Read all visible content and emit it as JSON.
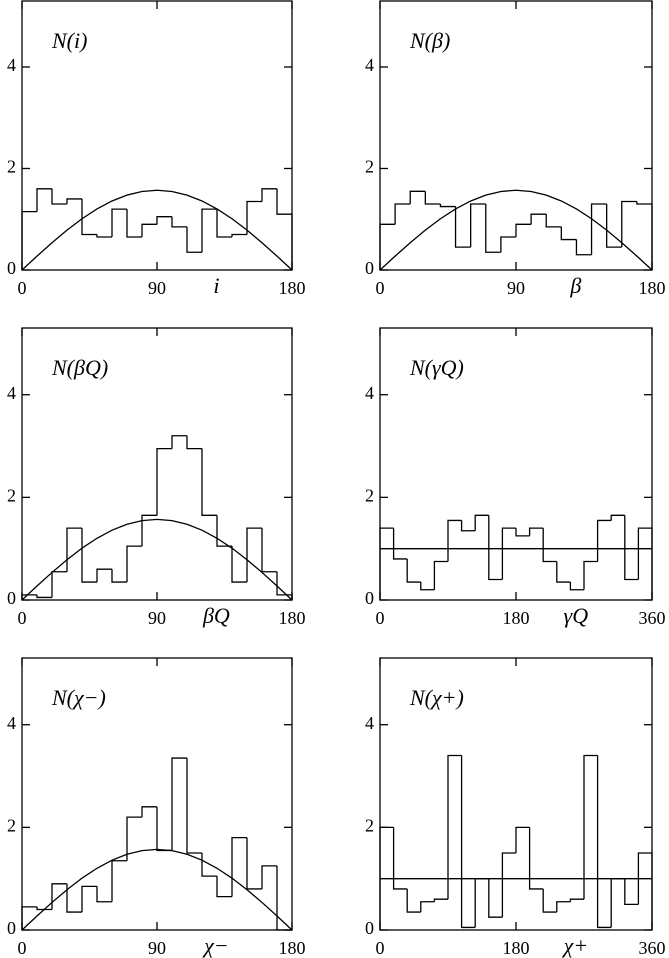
{
  "chart_data": [
    {
      "type": "histogram",
      "title": "N(i)",
      "xlabel": "i",
      "bins": [
        0,
        10,
        20,
        30,
        40,
        50,
        60,
        70,
        80,
        90,
        100,
        110,
        120,
        130,
        140,
        150,
        160,
        170,
        180
      ],
      "values": [
        1.15,
        1.6,
        1.3,
        1.4,
        0.7,
        0.65,
        1.2,
        0.65,
        0.9,
        1.05,
        0.85,
        0.35,
        1.2,
        0.65,
        0.7,
        1.35,
        1.6,
        1.1
      ],
      "curve": {
        "x": [
          0,
          10,
          20,
          30,
          40,
          50,
          60,
          70,
          80,
          90,
          100,
          110,
          120,
          130,
          140,
          150,
          160,
          170,
          180
        ],
        "values": [
          0,
          0.273,
          0.537,
          0.785,
          1.01,
          1.203,
          1.36,
          1.476,
          1.547,
          1.571,
          1.547,
          1.476,
          1.36,
          1.203,
          1.01,
          0.785,
          0.537,
          0.273,
          0
        ]
      },
      "xlim": [
        0,
        180
      ],
      "xticks": [
        0,
        90,
        180
      ],
      "ylim": [
        0,
        5.3
      ],
      "yticks": [
        0,
        2,
        4
      ],
      "color": "#000000"
    },
    {
      "type": "histogram",
      "title": "N(β)",
      "xlabel": "β",
      "bins": [
        0,
        10,
        20,
        30,
        40,
        50,
        60,
        70,
        80,
        90,
        100,
        110,
        120,
        130,
        140,
        150,
        160,
        170,
        180
      ],
      "values": [
        0.9,
        1.3,
        1.55,
        1.3,
        1.25,
        0.45,
        1.3,
        0.35,
        0.65,
        0.9,
        1.1,
        0.85,
        0.6,
        0.3,
        1.3,
        0.45,
        1.35,
        1.3
      ],
      "curve": {
        "x": [
          0,
          10,
          20,
          30,
          40,
          50,
          60,
          70,
          80,
          90,
          100,
          110,
          120,
          130,
          140,
          150,
          160,
          170,
          180
        ],
        "values": [
          0,
          0.273,
          0.537,
          0.785,
          1.01,
          1.203,
          1.36,
          1.476,
          1.547,
          1.571,
          1.547,
          1.476,
          1.36,
          1.203,
          1.01,
          0.785,
          0.537,
          0.273,
          0
        ]
      },
      "xlim": [
        0,
        180
      ],
      "xticks": [
        0,
        90,
        180
      ],
      "ylim": [
        0,
        5.3
      ],
      "yticks": [
        0,
        2,
        4
      ],
      "color": "#000000"
    },
    {
      "type": "histogram",
      "title": "N(βQ)",
      "xlabel": "βQ",
      "bins": [
        0,
        10,
        20,
        30,
        40,
        50,
        60,
        70,
        80,
        90,
        100,
        110,
        120,
        130,
        140,
        150,
        160,
        170,
        180
      ],
      "values": [
        0.1,
        0.05,
        0.55,
        1.4,
        0.35,
        0.6,
        0.35,
        1.05,
        1.65,
        2.95,
        3.2,
        2.95,
        1.65,
        1.05,
        0.35,
        1.4,
        0.55,
        0.1
      ],
      "curve": {
        "x": [
          0,
          10,
          20,
          30,
          40,
          50,
          60,
          70,
          80,
          90,
          100,
          110,
          120,
          130,
          140,
          150,
          160,
          170,
          180
        ],
        "values": [
          0,
          0.273,
          0.537,
          0.785,
          1.01,
          1.203,
          1.36,
          1.476,
          1.547,
          1.571,
          1.547,
          1.476,
          1.36,
          1.203,
          1.01,
          0.785,
          0.537,
          0.273,
          0
        ]
      },
      "xlim": [
        0,
        180
      ],
      "xticks": [
        0,
        90,
        180
      ],
      "ylim": [
        0,
        5.3
      ],
      "yticks": [
        0,
        2,
        4
      ],
      "color": "#000000"
    },
    {
      "type": "histogram",
      "title": "N(γQ)",
      "xlabel": "γQ",
      "bins": [
        0,
        18,
        36,
        54,
        72,
        90,
        108,
        126,
        144,
        162,
        180,
        198,
        216,
        234,
        252,
        270,
        288,
        306,
        324,
        342,
        360
      ],
      "values": [
        1.4,
        0.8,
        0.35,
        0.2,
        0.75,
        1.55,
        1.35,
        1.65,
        0.4,
        1.4,
        1.25,
        1.4,
        0.75,
        0.35,
        0.2,
        0.75,
        1.55,
        1.65,
        0.4,
        1.4
      ],
      "curve": {
        "x": [
          0,
          360
        ],
        "values": [
          1,
          1
        ]
      },
      "xlim": [
        0,
        360
      ],
      "xticks": [
        0,
        180,
        360
      ],
      "ylim": [
        0,
        5.3
      ],
      "yticks": [
        0,
        2,
        4
      ],
      "color": "#000000"
    },
    {
      "type": "histogram",
      "title": "N(χ−)",
      "xlabel": "χ−",
      "bins": [
        0,
        10,
        20,
        30,
        40,
        50,
        60,
        70,
        80,
        90,
        100,
        110,
        120,
        130,
        140,
        150,
        160,
        170,
        180
      ],
      "values": [
        0.45,
        0.4,
        0.9,
        0.35,
        0.85,
        0.55,
        1.35,
        2.2,
        2.4,
        1.55,
        3.35,
        1.5,
        1.05,
        0.65,
        1.8,
        0.8,
        1.25,
        0
      ],
      "curve": {
        "x": [
          0,
          10,
          20,
          30,
          40,
          50,
          60,
          70,
          80,
          90,
          100,
          110,
          120,
          130,
          140,
          150,
          160,
          170,
          180
        ],
        "values": [
          0,
          0.273,
          0.537,
          0.785,
          1.01,
          1.203,
          1.36,
          1.476,
          1.547,
          1.571,
          1.547,
          1.476,
          1.36,
          1.203,
          1.01,
          0.785,
          0.537,
          0.273,
          0
        ]
      },
      "xlim": [
        0,
        180
      ],
      "xticks": [
        0,
        90,
        180
      ],
      "ylim": [
        0,
        5.3
      ],
      "yticks": [
        0,
        2,
        4
      ],
      "color": "#000000"
    },
    {
      "type": "histogram",
      "title": "N(χ+)",
      "xlabel": "χ+",
      "bins": [
        0,
        18,
        36,
        54,
        72,
        90,
        108,
        126,
        144,
        162,
        180,
        198,
        216,
        234,
        252,
        270,
        288,
        306,
        324,
        342,
        360
      ],
      "values": [
        2.0,
        0.8,
        0.35,
        0.55,
        0.6,
        3.4,
        0.05,
        1.0,
        0.25,
        1.5,
        2.0,
        0.8,
        0.35,
        0.55,
        0.6,
        3.4,
        0.05,
        1.0,
        0.5,
        1.5
      ],
      "curve": {
        "x": [
          0,
          360
        ],
        "values": [
          1,
          1
        ]
      },
      "xlim": [
        0,
        360
      ],
      "xticks": [
        0,
        180,
        360
      ],
      "ylim": [
        0,
        5.3
      ],
      "yticks": [
        0,
        2,
        4
      ],
      "color": "#000000"
    }
  ]
}
